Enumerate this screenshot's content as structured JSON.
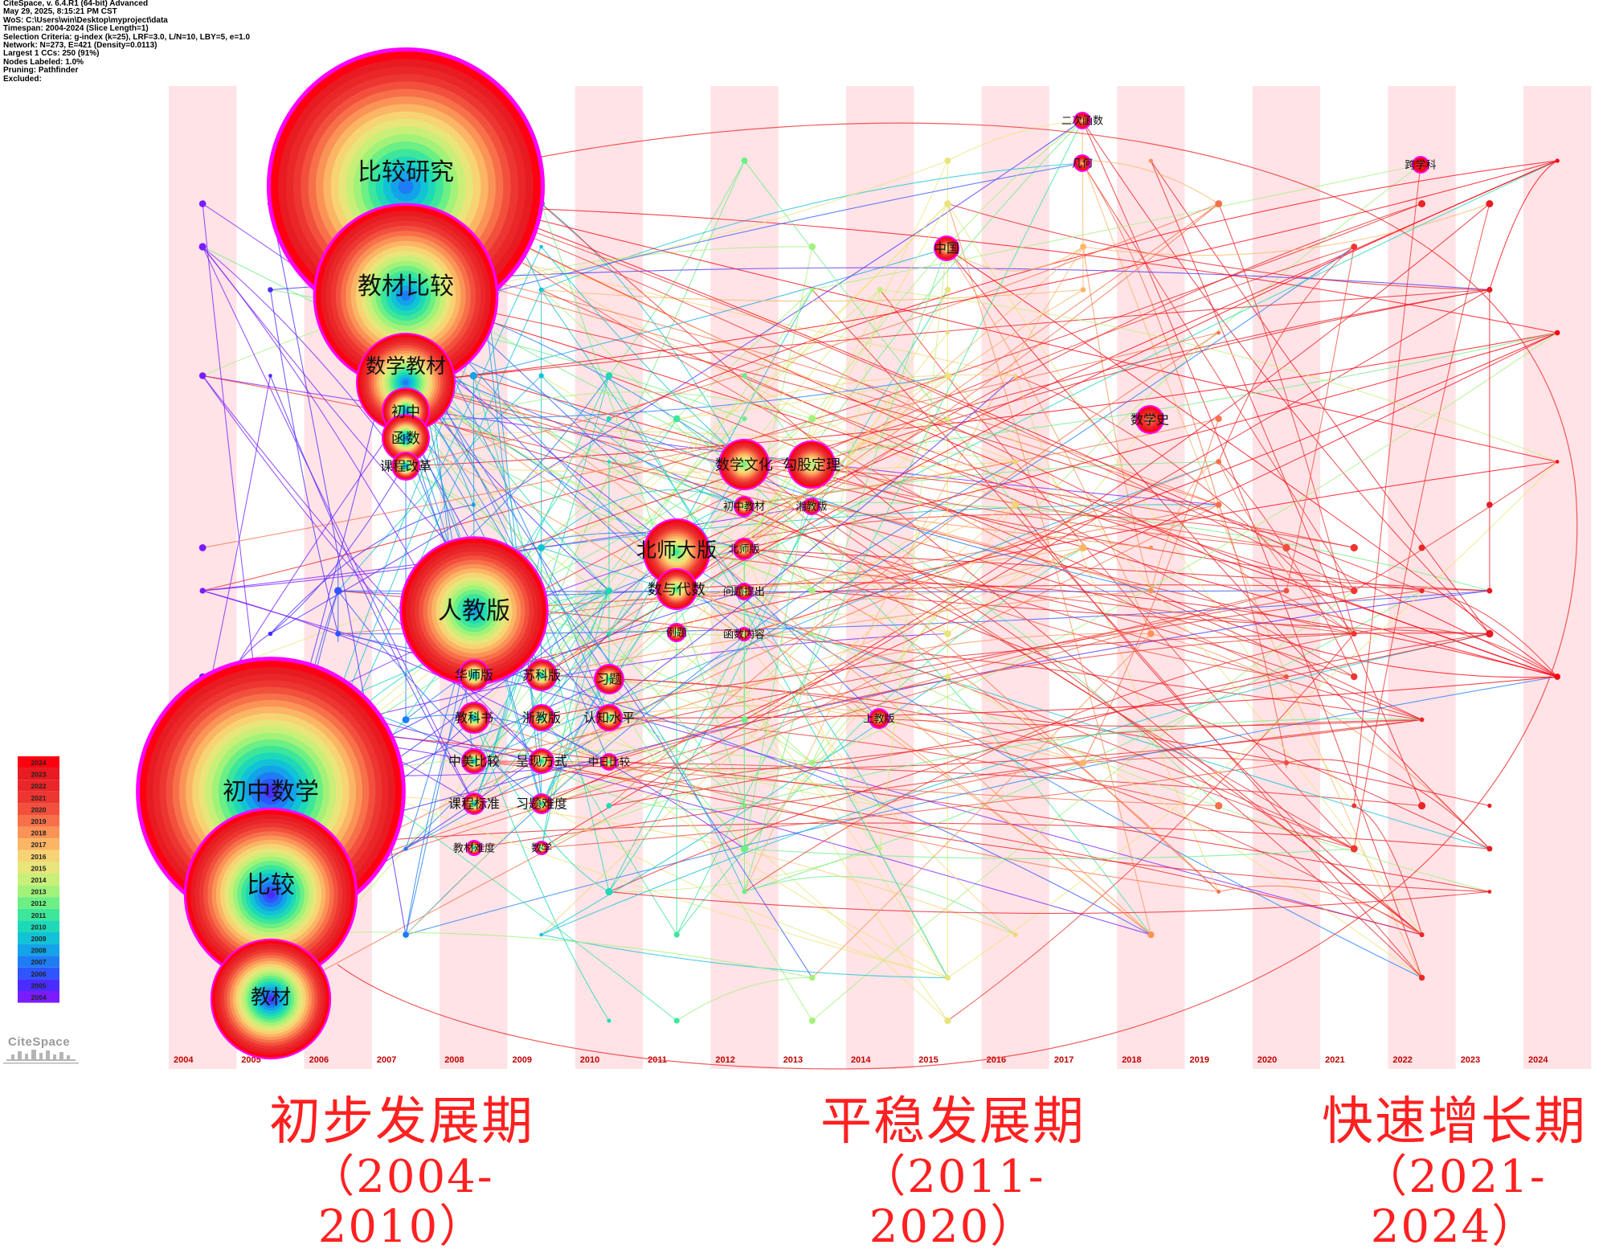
{
  "info_lines": [
    "CiteSpace, v. 6.4.R1 (64-bit) Advanced",
    "May 29, 2025, 8:15:21 PM CST",
    "WoS: C:\\Users\\win\\Desktop\\myproject\\data",
    "Timespan: 2004-2024 (Slice Length=1)",
    "Selection Criteria: g-index (k=25), LRF=3.0, L/N=10, LBY=5, e=1.0",
    "Network: N=273, E=421 (Density=0.0113)",
    "Largest 1 CCs: 250 (91%)",
    "Nodes Labeled: 1.0%",
    "Pruning: Pathfinder",
    "Excluded:"
  ],
  "years": [
    "2004",
    "2005",
    "2006",
    "2007",
    "2008",
    "2009",
    "2010",
    "2011",
    "2012",
    "2013",
    "2014",
    "2015",
    "2016",
    "2017",
    "2018",
    "2019",
    "2020",
    "2021",
    "2022",
    "2023",
    "2024"
  ],
  "legend_years": [
    "2024",
    "2023",
    "2022",
    "2021",
    "2020",
    "2019",
    "2018",
    "2017",
    "2016",
    "2015",
    "2014",
    "2013",
    "2012",
    "2011",
    "2010",
    "2009",
    "2008",
    "2007",
    "2006",
    "2005",
    "2004"
  ],
  "logo_text": "CiteSpace",
  "periods": [
    {
      "name": "初步发展期",
      "range": "（2004-2010）"
    },
    {
      "name": "平稳发展期",
      "range": "（2011-2020）"
    },
    {
      "name": "快速增长期",
      "range": "（2021-2024）"
    }
  ],
  "keywords": [
    {
      "label": "比较研究",
      "year": 2007,
      "size": 5
    },
    {
      "label": "教材比较",
      "year": 2007,
      "size": 5
    },
    {
      "label": "数学教材",
      "year": 2007,
      "size": 4
    },
    {
      "label": "初中",
      "year": 2007,
      "size": 3
    },
    {
      "label": "函数",
      "year": 2007,
      "size": 3
    },
    {
      "label": "课程改革",
      "year": 2007,
      "size": 2
    },
    {
      "label": "人教版",
      "year": 2008,
      "size": 5
    },
    {
      "label": "初中数学",
      "year": 2005,
      "size": 5
    },
    {
      "label": "比较",
      "year": 2005,
      "size": 5
    },
    {
      "label": "教材",
      "year": 2005,
      "size": 4
    },
    {
      "label": "华师版",
      "year": 2008,
      "size": 2
    },
    {
      "label": "苏科版",
      "year": 2009,
      "size": 2
    },
    {
      "label": "习题",
      "year": 2010,
      "size": 2
    },
    {
      "label": "教科书",
      "year": 2008,
      "size": 2
    },
    {
      "label": "浙教版",
      "year": 2009,
      "size": 2
    },
    {
      "label": "认知水平",
      "year": 2010,
      "size": 2
    },
    {
      "label": "中美比较",
      "year": 2008,
      "size": 2
    },
    {
      "label": "呈现方式",
      "year": 2009,
      "size": 2
    },
    {
      "label": "中日比较",
      "year": 2010,
      "size": 1
    },
    {
      "label": "课程标准",
      "year": 2008,
      "size": 2
    },
    {
      "label": "习题难度",
      "year": 2009,
      "size": 2
    },
    {
      "label": "教材难度",
      "year": 2008,
      "size": 1
    },
    {
      "label": "数学",
      "year": 2009,
      "size": 1
    },
    {
      "label": "北师大版",
      "year": 2011,
      "size": 4
    },
    {
      "label": "数与代数",
      "year": 2011,
      "size": 3
    },
    {
      "label": "例题",
      "year": 2011,
      "size": 1
    },
    {
      "label": "数学文化",
      "year": 2012,
      "size": 3
    },
    {
      "label": "勾股定理",
      "year": 2013,
      "size": 3
    },
    {
      "label": "初中教材",
      "year": 2012,
      "size": 1
    },
    {
      "label": "湘教版",
      "year": 2013,
      "size": 1
    },
    {
      "label": "北师版",
      "year": 2012,
      "size": 1
    },
    {
      "label": "问题提出",
      "year": 2012,
      "size": 1
    },
    {
      "label": "函数内容",
      "year": 2012,
      "size": 1
    },
    {
      "label": "上教版",
      "year": 2014,
      "size": 1
    },
    {
      "label": "中国",
      "year": 2015,
      "size": 2
    },
    {
      "label": "二次函数",
      "year": 2017,
      "size": 1
    },
    {
      "label": "几何",
      "year": 2017,
      "size": 1
    },
    {
      "label": "数学史",
      "year": 2018,
      "size": 2
    },
    {
      "label": "跨学科",
      "year": 2022,
      "size": 1
    }
  ],
  "colors": {
    "stripe": "#ffe3e6",
    "period_text": "#ff2020",
    "ring_outer": "#ff00ff",
    "year_label": "#c00000"
  }
}
